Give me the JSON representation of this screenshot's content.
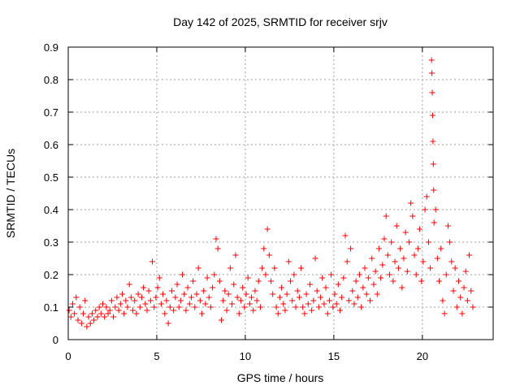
{
  "chart_data": {
    "type": "scatter",
    "title": "Day 142 of 2025, SRMTID for receiver srjv",
    "xlabel": "GPS time / hours",
    "ylabel": "SRMTID / TECUs",
    "xlim": [
      0,
      24
    ],
    "ylim": [
      0,
      0.9
    ],
    "xticks": [
      0,
      5,
      10,
      15,
      20
    ],
    "xtick_labels": [
      "0",
      "5",
      "10",
      "15",
      "20"
    ],
    "yticks": [
      0,
      0.1,
      0.2,
      0.3,
      0.4,
      0.5,
      0.6,
      0.7,
      0.8,
      0.9
    ],
    "ytick_labels": [
      "0",
      "0.1",
      "0.2",
      "0.3",
      "0.4",
      "0.5",
      "0.6",
      "0.7",
      "0.8",
      "0.9"
    ],
    "grid": true,
    "marker": "plus",
    "series": [
      {
        "name": "SRMTID",
        "color": "#ff0000",
        "points": [
          [
            0.05,
            0.09
          ],
          [
            0.15,
            0.07
          ],
          [
            0.25,
            0.11
          ],
          [
            0.35,
            0.08
          ],
          [
            0.45,
            0.13
          ],
          [
            0.55,
            0.06
          ],
          [
            0.65,
            0.1
          ],
          [
            0.75,
            0.05
          ],
          [
            0.85,
            0.08
          ],
          [
            0.95,
            0.12
          ],
          [
            1.05,
            0.04
          ],
          [
            1.15,
            0.07
          ],
          [
            1.25,
            0.05
          ],
          [
            1.35,
            0.08
          ],
          [
            1.45,
            0.06
          ],
          [
            1.55,
            0.09
          ],
          [
            1.65,
            0.07
          ],
          [
            1.75,
            0.1
          ],
          [
            1.85,
            0.08
          ],
          [
            1.95,
            0.11
          ],
          [
            2.05,
            0.07
          ],
          [
            2.15,
            0.1
          ],
          [
            2.25,
            0.08
          ],
          [
            2.35,
            0.09
          ],
          [
            2.45,
            0.12
          ],
          [
            2.55,
            0.07
          ],
          [
            2.65,
            0.1
          ],
          [
            2.75,
            0.13
          ],
          [
            2.85,
            0.09
          ],
          [
            2.95,
            0.11
          ],
          [
            3.05,
            0.14
          ],
          [
            3.15,
            0.08
          ],
          [
            3.25,
            0.12
          ],
          [
            3.35,
            0.1
          ],
          [
            3.45,
            0.17
          ],
          [
            3.55,
            0.13
          ],
          [
            3.65,
            0.09
          ],
          [
            3.75,
            0.12
          ],
          [
            3.85,
            0.08
          ],
          [
            3.95,
            0.14
          ],
          [
            4.05,
            0.1
          ],
          [
            4.15,
            0.13
          ],
          [
            4.25,
            0.16
          ],
          [
            4.35,
            0.11
          ],
          [
            4.45,
            0.09
          ],
          [
            4.55,
            0.15
          ],
          [
            4.65,
            0.12
          ],
          [
            4.75,
            0.24
          ],
          [
            4.85,
            0.1
          ],
          [
            4.95,
            0.13
          ],
          [
            5.05,
            0.16
          ],
          [
            5.15,
            0.19
          ],
          [
            5.25,
            0.11
          ],
          [
            5.35,
            0.14
          ],
          [
            5.45,
            0.08
          ],
          [
            5.55,
            0.12
          ],
          [
            5.65,
            0.05
          ],
          [
            5.75,
            0.1
          ],
          [
            5.85,
            0.15
          ],
          [
            5.95,
            0.09
          ],
          [
            6.05,
            0.13
          ],
          [
            6.15,
            0.17
          ],
          [
            6.25,
            0.1
          ],
          [
            6.35,
            0.12
          ],
          [
            6.45,
            0.2
          ],
          [
            6.55,
            0.14
          ],
          [
            6.65,
            0.09
          ],
          [
            6.75,
            0.16
          ],
          [
            6.85,
            0.11
          ],
          [
            6.95,
            0.13
          ],
          [
            7.05,
            0.18
          ],
          [
            7.15,
            0.1
          ],
          [
            7.25,
            0.14
          ],
          [
            7.35,
            0.22
          ],
          [
            7.45,
            0.12
          ],
          [
            7.55,
            0.08
          ],
          [
            7.65,
            0.15
          ],
          [
            7.75,
            0.11
          ],
          [
            7.85,
            0.19
          ],
          [
            7.95,
            0.13
          ],
          [
            8.05,
            0.1
          ],
          [
            8.15,
            0.16
          ],
          [
            8.25,
            0.2
          ],
          [
            8.35,
            0.31
          ],
          [
            8.45,
            0.28
          ],
          [
            8.55,
            0.18
          ],
          [
            8.65,
            0.06
          ],
          [
            8.75,
            0.12
          ],
          [
            8.85,
            0.15
          ],
          [
            8.95,
            0.09
          ],
          [
            9.05,
            0.14
          ],
          [
            9.15,
            0.22
          ],
          [
            9.25,
            0.11
          ],
          [
            9.35,
            0.17
          ],
          [
            9.45,
            0.26
          ],
          [
            9.55,
            0.13
          ],
          [
            9.65,
            0.08
          ],
          [
            9.75,
            0.12
          ],
          [
            9.85,
            0.16
          ],
          [
            9.95,
            0.1
          ],
          [
            10.05,
            0.14
          ],
          [
            10.15,
            0.19
          ],
          [
            10.25,
            0.11
          ],
          [
            10.35,
            0.13
          ],
          [
            10.45,
            0.09
          ],
          [
            10.55,
            0.15
          ],
          [
            10.65,
            0.12
          ],
          [
            10.75,
            0.18
          ],
          [
            10.85,
            0.1
          ],
          [
            10.95,
            0.22
          ],
          [
            11.05,
            0.28
          ],
          [
            11.15,
            0.2
          ],
          [
            11.25,
            0.34
          ],
          [
            11.35,
            0.26
          ],
          [
            11.45,
            0.18
          ],
          [
            11.55,
            0.14
          ],
          [
            11.65,
            0.22
          ],
          [
            11.75,
            0.1
          ],
          [
            11.85,
            0.08
          ],
          [
            11.95,
            0.13
          ],
          [
            12.05,
            0.16
          ],
          [
            12.15,
            0.11
          ],
          [
            12.25,
            0.09
          ],
          [
            12.35,
            0.14
          ],
          [
            12.45,
            0.24
          ],
          [
            12.55,
            0.18
          ],
          [
            12.65,
            0.12
          ],
          [
            12.75,
            0.2
          ],
          [
            12.85,
            0.1
          ],
          [
            12.95,
            0.15
          ],
          [
            13.05,
            0.13
          ],
          [
            13.15,
            0.22
          ],
          [
            13.25,
            0.1
          ],
          [
            13.35,
            0.08
          ],
          [
            13.45,
            0.14
          ],
          [
            13.55,
            0.11
          ],
          [
            13.65,
            0.17
          ],
          [
            13.75,
            0.09
          ],
          [
            13.85,
            0.12
          ],
          [
            13.95,
            0.25
          ],
          [
            14.05,
            0.15
          ],
          [
            14.15,
            0.1
          ],
          [
            14.25,
            0.13
          ],
          [
            14.35,
            0.19
          ],
          [
            14.45,
            0.11
          ],
          [
            14.55,
            0.16
          ],
          [
            14.65,
            0.08
          ],
          [
            14.75,
            0.12
          ],
          [
            14.85,
            0.2
          ],
          [
            14.95,
            0.1
          ],
          [
            15.05,
            0.14
          ],
          [
            15.15,
            0.11
          ],
          [
            15.25,
            0.17
          ],
          [
            15.35,
            0.09
          ],
          [
            15.45,
            0.13
          ],
          [
            15.55,
            0.19
          ],
          [
            15.65,
            0.32
          ],
          [
            15.75,
            0.24
          ],
          [
            15.85,
            0.12
          ],
          [
            15.95,
            0.28
          ],
          [
            16.05,
            0.15
          ],
          [
            16.15,
            0.11
          ],
          [
            16.25,
            0.18
          ],
          [
            16.35,
            0.13
          ],
          [
            16.45,
            0.2
          ],
          [
            16.55,
            0.1
          ],
          [
            16.65,
            0.16
          ],
          [
            16.75,
            0.22
          ],
          [
            16.85,
            0.14
          ],
          [
            16.95,
            0.19
          ],
          [
            17.05,
            0.12
          ],
          [
            17.15,
            0.25
          ],
          [
            17.25,
            0.17
          ],
          [
            17.35,
            0.21
          ],
          [
            17.45,
            0.14
          ],
          [
            17.55,
            0.28
          ],
          [
            17.65,
            0.19
          ],
          [
            17.75,
            0.23
          ],
          [
            17.85,
            0.31
          ],
          [
            17.95,
            0.38
          ],
          [
            18.05,
            0.26
          ],
          [
            18.15,
            0.2
          ],
          [
            18.25,
            0.3
          ],
          [
            18.35,
            0.18
          ],
          [
            18.45,
            0.24
          ],
          [
            18.55,
            0.35
          ],
          [
            18.65,
            0.22
          ],
          [
            18.75,
            0.28
          ],
          [
            18.85,
            0.16
          ],
          [
            18.95,
            0.25
          ],
          [
            19.05,
            0.33
          ],
          [
            19.15,
            0.21
          ],
          [
            19.25,
            0.3
          ],
          [
            19.35,
            0.42
          ],
          [
            19.45,
            0.38
          ],
          [
            19.55,
            0.26
          ],
          [
            19.65,
            0.2
          ],
          [
            19.75,
            0.28
          ],
          [
            19.85,
            0.34
          ],
          [
            19.95,
            0.18
          ],
          [
            20.05,
            0.24
          ],
          [
            20.15,
            0.4
          ],
          [
            20.25,
            0.44
          ],
          [
            20.35,
            0.3
          ],
          [
            20.45,
            0.22
          ],
          [
            20.52,
            0.86
          ],
          [
            20.54,
            0.82
          ],
          [
            20.56,
            0.76
          ],
          [
            20.58,
            0.69
          ],
          [
            20.6,
            0.61
          ],
          [
            20.62,
            0.54
          ],
          [
            20.64,
            0.46
          ],
          [
            20.66,
            0.36
          ],
          [
            20.75,
            0.4
          ],
          [
            20.85,
            0.25
          ],
          [
            20.95,
            0.18
          ],
          [
            21.05,
            0.28
          ],
          [
            21.15,
            0.12
          ],
          [
            21.25,
            0.08
          ],
          [
            21.35,
            0.2
          ],
          [
            21.45,
            0.35
          ],
          [
            21.55,
            0.3
          ],
          [
            21.65,
            0.24
          ],
          [
            21.75,
            0.15
          ],
          [
            21.85,
            0.22
          ],
          [
            21.95,
            0.1
          ],
          [
            22.05,
            0.18
          ],
          [
            22.15,
            0.13
          ],
          [
            22.25,
            0.08
          ],
          [
            22.35,
            0.16
          ],
          [
            22.45,
            0.21
          ],
          [
            22.55,
            0.12
          ],
          [
            22.65,
            0.26
          ],
          [
            22.75,
            0.15
          ],
          [
            22.85,
            0.1
          ]
        ]
      }
    ]
  }
}
